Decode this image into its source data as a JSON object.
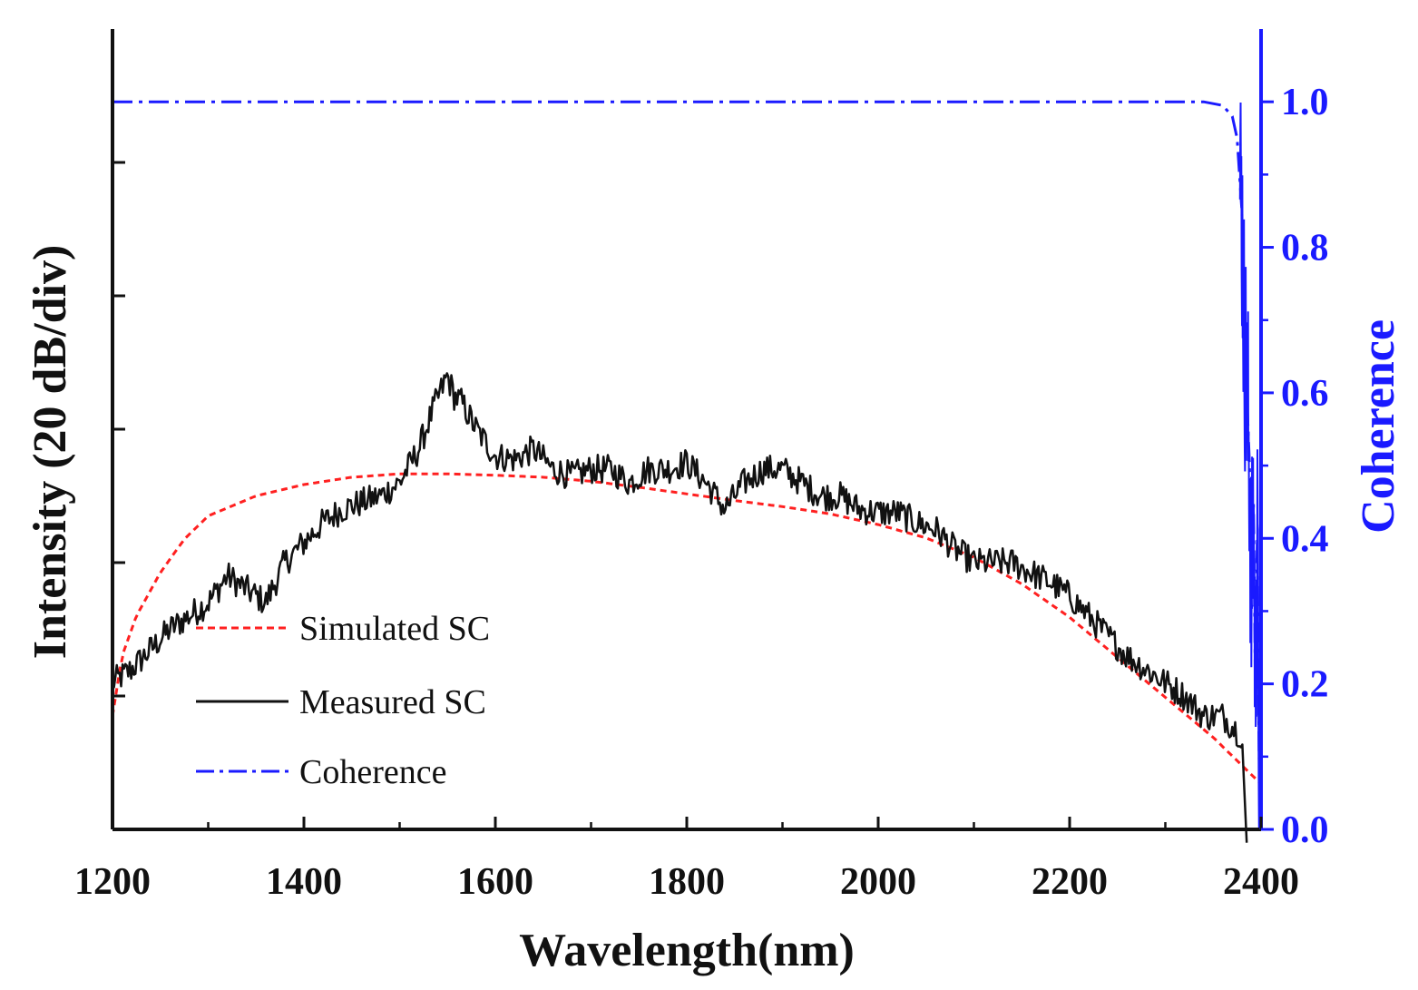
{
  "chart_data": {
    "type": "line",
    "title": "",
    "xlabel": "Wavelength(nm)",
    "ylabel_left": "Intensity (20 dB/div)",
    "ylabel_right": "Coherence",
    "xlim": [
      1200,
      2400
    ],
    "xticks": [
      1200,
      1400,
      1600,
      1800,
      2000,
      2200,
      2400
    ],
    "xtick_labels": [
      "1200",
      "1400",
      "1600",
      "1800",
      "2000",
      "2200",
      "2400"
    ],
    "y_left_div": 20,
    "y_left_range_db": [
      -120,
      0
    ],
    "y_left_ticks_db": [
      -20,
      -40,
      -60,
      -80,
      -100
    ],
    "y_right_lim": [
      0,
      1.1
    ],
    "y_right_ticks": [
      0.0,
      0.2,
      0.4,
      0.6,
      0.8,
      1.0
    ],
    "y_right_tick_labels": [
      "0.0",
      "0.2",
      "0.4",
      "0.6",
      "0.8",
      "1.0"
    ],
    "legend_position": "lower-left",
    "colors": {
      "simulated": "#ff2020",
      "measured": "#111111",
      "coherence": "#1a1aff",
      "axis": "#111111",
      "right_axis": "#1a1aff"
    },
    "series": [
      {
        "name": "Simulated SC",
        "axis": "left",
        "style": "dashed",
        "x": [
          1200,
          1210,
          1225,
          1250,
          1275,
          1300,
          1350,
          1400,
          1450,
          1500,
          1550,
          1600,
          1650,
          1700,
          1750,
          1800,
          1850,
          1900,
          1950,
          2000,
          2050,
          2100,
          2150,
          2200,
          2250,
          2300,
          2350,
          2400
        ],
        "values": [
          -103,
          -94,
          -88,
          -81.5,
          -76.5,
          -73,
          -70,
          -68.3,
          -67.2,
          -66.7,
          -66.7,
          -66.9,
          -67.2,
          -67.8,
          -68.7,
          -69.7,
          -70.7,
          -71.6,
          -72.7,
          -74.3,
          -76.3,
          -79.2,
          -83.2,
          -88.2,
          -94.2,
          -100.2,
          -106.2,
          -113.2
        ]
      },
      {
        "name": "Measured SC",
        "axis": "left",
        "style": "solid",
        "noise_db": 2.2,
        "x": [
          1200,
          1220,
          1240,
          1260,
          1280,
          1300,
          1320,
          1340,
          1360,
          1380,
          1400,
          1420,
          1440,
          1460,
          1480,
          1500,
          1520,
          1535,
          1550,
          1557,
          1565,
          1580,
          1600,
          1620,
          1640,
          1660,
          1680,
          1700,
          1720,
          1740,
          1760,
          1780,
          1800,
          1820,
          1840,
          1860,
          1880,
          1900,
          1920,
          1940,
          1960,
          1980,
          2000,
          2020,
          2040,
          2060,
          2080,
          2100,
          2120,
          2140,
          2160,
          2180,
          2200,
          2220,
          2240,
          2260,
          2280,
          2300,
          2320,
          2340,
          2360,
          2380,
          2385
        ],
        "values": [
          -98,
          -96,
          -93,
          -90,
          -88,
          -86,
          -82,
          -84,
          -86,
          -80,
          -77,
          -74,
          -72,
          -71,
          -70,
          -68,
          -63,
          -57,
          -52,
          -55,
          -56,
          -60,
          -64,
          -64.5,
          -63,
          -66,
          -67,
          -66,
          -66,
          -68,
          -66,
          -66,
          -65,
          -68,
          -72,
          -68,
          -66,
          -66,
          -68,
          -70,
          -70,
          -72,
          -72.5,
          -72.5,
          -74,
          -75,
          -78,
          -80,
          -80,
          -80,
          -81.5,
          -83,
          -85,
          -88,
          -91,
          -94,
          -96,
          -98,
          -100,
          -103,
          -103,
          -106,
          -122
        ]
      },
      {
        "name": "Coherence",
        "axis": "right",
        "style": "dash-dot",
        "x": [
          1200,
          1400,
          1600,
          1800,
          2000,
          2200,
          2300,
          2340,
          2360,
          2370,
          2375,
          2380,
          2382,
          2385,
          2388,
          2390,
          2392,
          2394,
          2396,
          2398,
          2400
        ],
        "values": [
          1.0,
          1.0,
          1.0,
          1.0,
          1.0,
          1.0,
          1.0,
          1.0,
          0.995,
          0.98,
          0.95,
          0.85,
          0.7,
          0.6,
          0.5,
          0.3,
          0.45,
          0.2,
          0.4,
          0.1,
          0.0
        ]
      }
    ]
  }
}
